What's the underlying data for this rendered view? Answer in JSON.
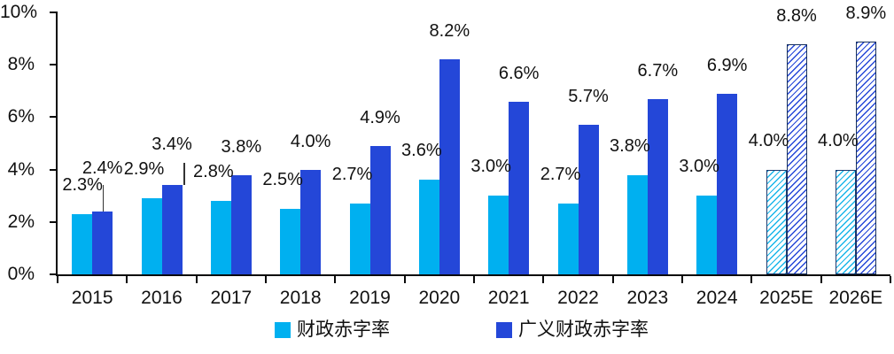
{
  "chart_data": {
    "type": "bar",
    "title": "",
    "categories": [
      "2015",
      "2016",
      "2017",
      "2018",
      "2019",
      "2020",
      "2021",
      "2022",
      "2023",
      "2024",
      "2025E",
      "2026E"
    ],
    "series": [
      {
        "name": "财政赤字率",
        "color": "#00b0f0",
        "values": [
          2.3,
          2.9,
          2.8,
          2.5,
          2.7,
          3.6,
          3.0,
          2.7,
          3.8,
          3.0,
          4.0,
          4.0
        ],
        "labels": [
          "2.3%",
          "2.9%",
          "2.8%",
          "2.5%",
          "2.7%",
          "3.6%",
          "3.0%",
          "2.7%",
          "3.8%",
          "3.0%",
          "4.0%",
          "4.0%"
        ]
      },
      {
        "name": "广义财政赤字率",
        "color": "#2447d8",
        "values": [
          2.4,
          3.4,
          3.8,
          4.0,
          4.9,
          8.2,
          6.6,
          5.7,
          6.7,
          6.9,
          8.8,
          8.9
        ],
        "labels": [
          "2.4%",
          "3.4%",
          "3.8%",
          "4.0%",
          "4.9%",
          "8.2%",
          "6.6%",
          "5.7%",
          "6.7%",
          "6.9%",
          "8.8%",
          "8.9%"
        ]
      }
    ],
    "hatched_from_index": 10,
    "leader_lines": [
      {
        "index": 0,
        "dx": 0,
        "len": 30,
        "label_gap": 38
      },
      {
        "index": 1,
        "dx": 13,
        "len": 25,
        "label_gap": 35
      }
    ],
    "y_axis": {
      "ylim": [
        0,
        10
      ],
      "tick_values": [
        0,
        2,
        4,
        6,
        8,
        10
      ],
      "tick_labels": [
        "0%",
        "2%",
        "4%",
        "6%",
        "8%",
        "10%"
      ]
    },
    "grid": false,
    "legend_position": "bottom",
    "text_color": "#111111",
    "axis_color": "#0a0a0a"
  }
}
